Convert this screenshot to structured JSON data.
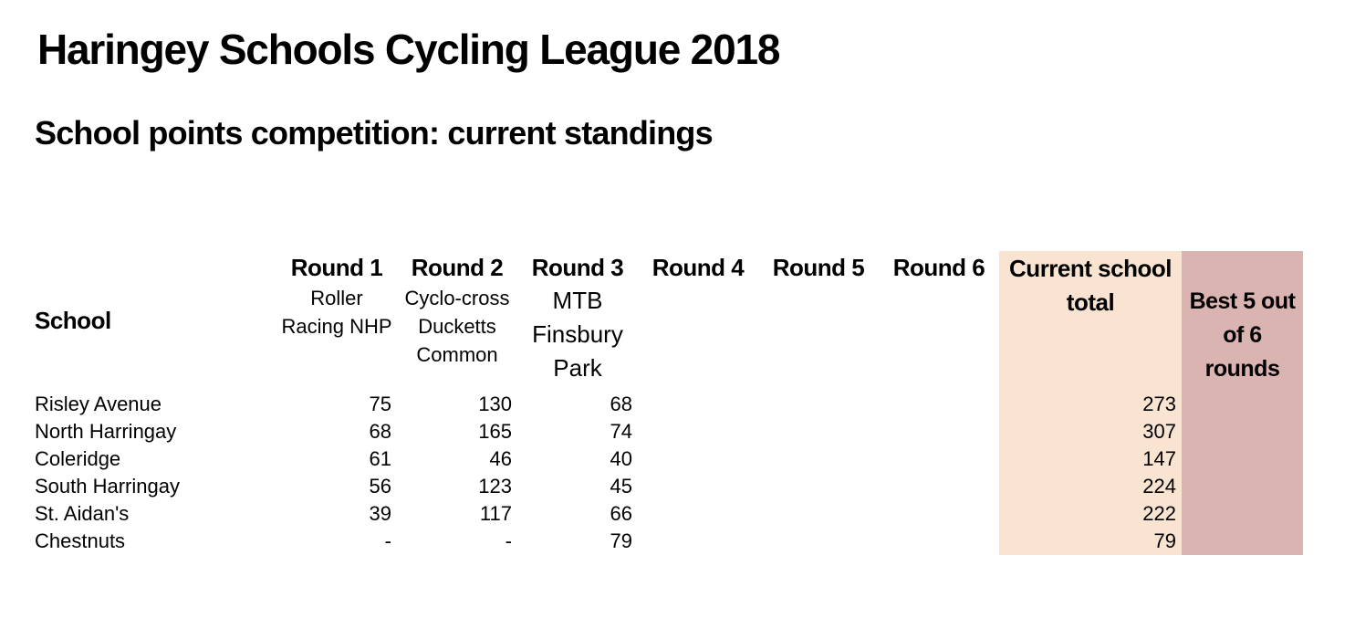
{
  "page": {
    "title": "Haringey Schools Cycling League 2018",
    "subtitle": "School points competition: current standings"
  },
  "table": {
    "school_header": "School",
    "round_columns": [
      {
        "label": "Round 1",
        "venue": "Roller\nRacing NHP"
      },
      {
        "label": "Round 2",
        "venue": "Cyclo-cross\nDucketts\nCommon"
      },
      {
        "label": "Round 3",
        "venue": "MTB\nFinsbury\nPark"
      },
      {
        "label": "Round 4",
        "venue": ""
      },
      {
        "label": "Round 5",
        "venue": ""
      },
      {
        "label": "Round 6",
        "venue": ""
      }
    ],
    "total_header": "Current school\ntotal",
    "best5_header": "Best 5 out\nof 6\nrounds",
    "colors": {
      "current_total_bg": "#F9E4D2",
      "best5_bg": "#D9B4B1"
    },
    "rows": [
      {
        "school": "Risley Avenue",
        "r1": "75",
        "r2": "130",
        "r3": "68",
        "r4": "",
        "r5": "",
        "r6": "",
        "total": "273",
        "best5": ""
      },
      {
        "school": "North Harringay",
        "r1": "68",
        "r2": "165",
        "r3": "74",
        "r4": "",
        "r5": "",
        "r6": "",
        "total": "307",
        "best5": ""
      },
      {
        "school": "Coleridge",
        "r1": "61",
        "r2": "46",
        "r3": "40",
        "r4": "",
        "r5": "",
        "r6": "",
        "total": "147",
        "best5": ""
      },
      {
        "school": "South Harringay",
        "r1": "56",
        "r2": "123",
        "r3": "45",
        "r4": "",
        "r5": "",
        "r6": "",
        "total": "224",
        "best5": ""
      },
      {
        "school": "St. Aidan's",
        "r1": "39",
        "r2": "117",
        "r3": "66",
        "r4": "",
        "r5": "",
        "r6": "",
        "total": "222",
        "best5": ""
      },
      {
        "school": "Chestnuts",
        "r1": "-",
        "r2": "-",
        "r3": "79",
        "r4": "",
        "r5": "",
        "r6": "",
        "total": "79",
        "best5": ""
      }
    ]
  }
}
